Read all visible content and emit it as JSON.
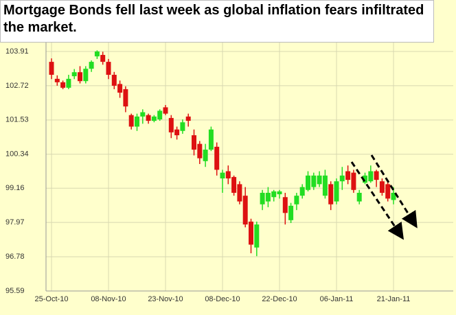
{
  "chart_data": {
    "type": "candlestick",
    "title": "Mortgage Bonds fell last week as global inflation fears infiltrated the market.",
    "categories": [
      "25-Oct-10",
      null,
      null,
      null,
      null,
      null,
      null,
      null,
      null,
      null,
      "08-Nov-10",
      null,
      null,
      null,
      null,
      null,
      null,
      null,
      null,
      null,
      "23-Nov-10",
      null,
      null,
      null,
      null,
      null,
      null,
      null,
      null,
      null,
      "08-Dec-10",
      null,
      null,
      null,
      null,
      null,
      null,
      null,
      null,
      null,
      "22-Dec-10",
      null,
      null,
      null,
      null,
      null,
      null,
      null,
      null,
      null,
      "06-Jan-11",
      null,
      null,
      null,
      null,
      null,
      null,
      null,
      null,
      null,
      "21-Jan-11"
    ],
    "open": [
      103.55,
      102.96,
      102.84,
      102.65,
      103.05,
      103.19,
      102.88,
      103.31,
      103.74,
      103.79,
      103.55,
      103.1,
      102.78,
      102.6,
      101.7,
      101.3,
      101.65,
      101.7,
      101.5,
      101.55,
      101.97,
      101.6,
      101.2,
      101.15,
      101.65,
      101.0,
      100.7,
      100.1,
      100.5,
      100.6,
      99.5,
      99.75,
      99.55,
      99.3,
      98.9,
      98.0,
      97.1,
      98.6,
      98.7,
      98.85,
      98.95,
      98.85,
      98.05,
      98.6,
      98.9,
      99.1,
      99.2,
      99.3,
      98.9,
      99.3,
      98.7,
      99.4,
      99.75,
      99.7,
      98.7,
      99.35,
      99.4,
      99.75,
      99.4,
      99.3,
      98.75
    ],
    "high": [
      103.67,
      103.08,
      102.9,
      103.1,
      103.3,
      103.4,
      103.4,
      103.6,
      103.95,
      103.9,
      103.65,
      103.2,
      102.9,
      102.7,
      101.75,
      101.75,
      101.9,
      101.75,
      101.7,
      101.9,
      102.05,
      101.7,
      101.3,
      101.55,
      101.75,
      101.2,
      100.8,
      100.7,
      101.3,
      100.75,
      99.8,
      99.95,
      99.6,
      99.4,
      99.2,
      98.1,
      98.0,
      99.1,
      99.2,
      99.1,
      99.1,
      99.0,
      98.65,
      99.0,
      99.3,
      99.75,
      99.7,
      99.75,
      99.8,
      99.4,
      99.5,
      99.9,
      99.95,
      99.8,
      99.1,
      99.7,
      99.95,
      99.8,
      99.5,
      99.4,
      99.2
    ],
    "low": [
      102.95,
      102.72,
      102.6,
      102.6,
      102.95,
      102.8,
      102.8,
      103.2,
      103.65,
      103.45,
      102.95,
      102.6,
      102.3,
      101.8,
      101.2,
      101.15,
      101.4,
      101.4,
      101.45,
      101.5,
      101.7,
      100.9,
      100.85,
      101.05,
      101.3,
      100.3,
      100.0,
      99.9,
      100.45,
      99.6,
      99.0,
      99.3,
      98.9,
      98.6,
      97.8,
      96.9,
      96.8,
      98.4,
      98.5,
      98.7,
      98.8,
      97.9,
      97.95,
      98.4,
      98.8,
      99.05,
      99.1,
      99.2,
      98.8,
      98.4,
      98.6,
      99.1,
      99.3,
      99.0,
      98.6,
      99.3,
      99.35,
      99.2,
      98.9,
      98.7,
      98.6
    ],
    "close": [
      103.1,
      102.84,
      102.65,
      102.96,
      103.19,
      102.88,
      103.31,
      103.55,
      103.91,
      103.55,
      103.1,
      102.72,
      102.48,
      102.0,
      101.3,
      101.65,
      101.8,
      101.5,
      101.65,
      101.85,
      101.75,
      101.1,
      101.0,
      101.45,
      101.5,
      100.5,
      100.2,
      100.5,
      101.2,
      99.8,
      99.7,
      99.5,
      99.0,
      98.7,
      97.9,
      97.2,
      97.9,
      99.0,
      99.0,
      99.05,
      99.05,
      98.3,
      98.55,
      98.9,
      99.2,
      99.6,
      99.6,
      99.6,
      99.6,
      98.6,
      99.4,
      99.6,
      99.45,
      99.1,
      99.0,
      99.6,
      99.75,
      99.45,
      99.0,
      98.8,
      99.0
    ],
    "up_color": "#22dd22",
    "down_color": "#dd1111",
    "ylim": [
      95.59,
      104.22
    ],
    "yticks": [
      {
        "value": 95.59,
        "label": "95.59"
      },
      {
        "value": 96.78,
        "label": "96.78"
      },
      {
        "value": 97.97,
        "label": "97.97"
      },
      {
        "value": 99.16,
        "label": "99.16"
      },
      {
        "value": 100.34,
        "label": "100.34"
      },
      {
        "value": 101.53,
        "label": "101.53"
      },
      {
        "value": 102.72,
        "label": "102.72"
      },
      {
        "value": 103.91,
        "label": "103.91"
      }
    ],
    "grid": true
  }
}
